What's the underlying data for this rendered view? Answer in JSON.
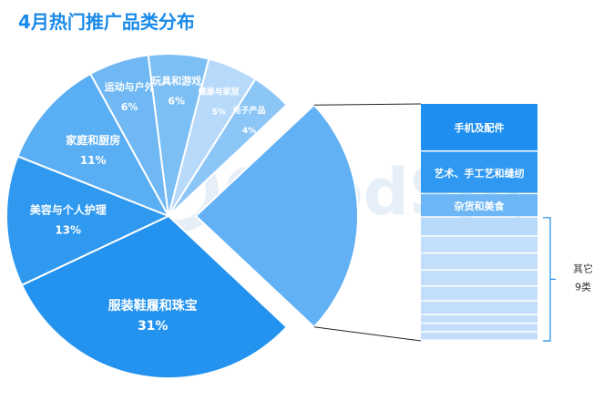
{
  "colors": {
    "title": "#1a8ae8",
    "accent": "#1e8ff0"
  },
  "watermark": "GoodSpy",
  "chart_data": {
    "type": "pie",
    "title": "4月热门推广品类分布",
    "slices": [
      {
        "label": "服装鞋履和珠宝",
        "value": 31,
        "value_label": "31%",
        "color": "#2393ef"
      },
      {
        "label": "美容与个人护理",
        "value": 13,
        "value_label": "13%",
        "color": "#2f99f0"
      },
      {
        "label": "家庭和厨房",
        "value": 11,
        "value_label": "11%",
        "color": "#5aaef3"
      },
      {
        "label": "运动与户外",
        "value": 6,
        "value_label": "6%",
        "color": "#6fb8f4"
      },
      {
        "label": "玩具和游戏",
        "value": 6,
        "value_label": "6%",
        "color": "#7cbff5"
      },
      {
        "label": "健康与家居",
        "value": 5,
        "value_label": "5%",
        "color": "#b8dafa"
      },
      {
        "label": "电子产品",
        "value": 4,
        "value_label": "4%",
        "color": "#8cc6f7"
      },
      {
        "label": "其他",
        "value": 24,
        "value_label": "",
        "color": "#62b1f4",
        "exploded": true
      }
    ],
    "breakdown": {
      "items": [
        {
          "label": "手机及配件",
          "value": 4.5,
          "color": "#1e8ff0"
        },
        {
          "label": "艺术、手工艺和缝纫",
          "value": 4.0,
          "color": "#2f98f1"
        },
        {
          "label": "杂货和美食",
          "value": 2.2,
          "color": "#6cb6f5"
        },
        {
          "label": "",
          "value": 1.8,
          "color": "#b7d9fa"
        },
        {
          "label": "",
          "value": 1.6,
          "color": "#c2defb"
        },
        {
          "label": "",
          "value": 1.6,
          "color": "#c2defb"
        },
        {
          "label": "",
          "value": 1.5,
          "color": "#c2defb"
        },
        {
          "label": "",
          "value": 1.4,
          "color": "#c2defb"
        },
        {
          "label": "",
          "value": 1.3,
          "color": "#c2defb"
        },
        {
          "label": "",
          "value": 0.8,
          "color": "#c2defb"
        },
        {
          "label": "",
          "value": 0.8,
          "color": "#c2defb"
        },
        {
          "label": "",
          "value": 0.8,
          "color": "#c2defb"
        }
      ],
      "group_label_1": "其它",
      "group_label_2": "9类"
    }
  }
}
